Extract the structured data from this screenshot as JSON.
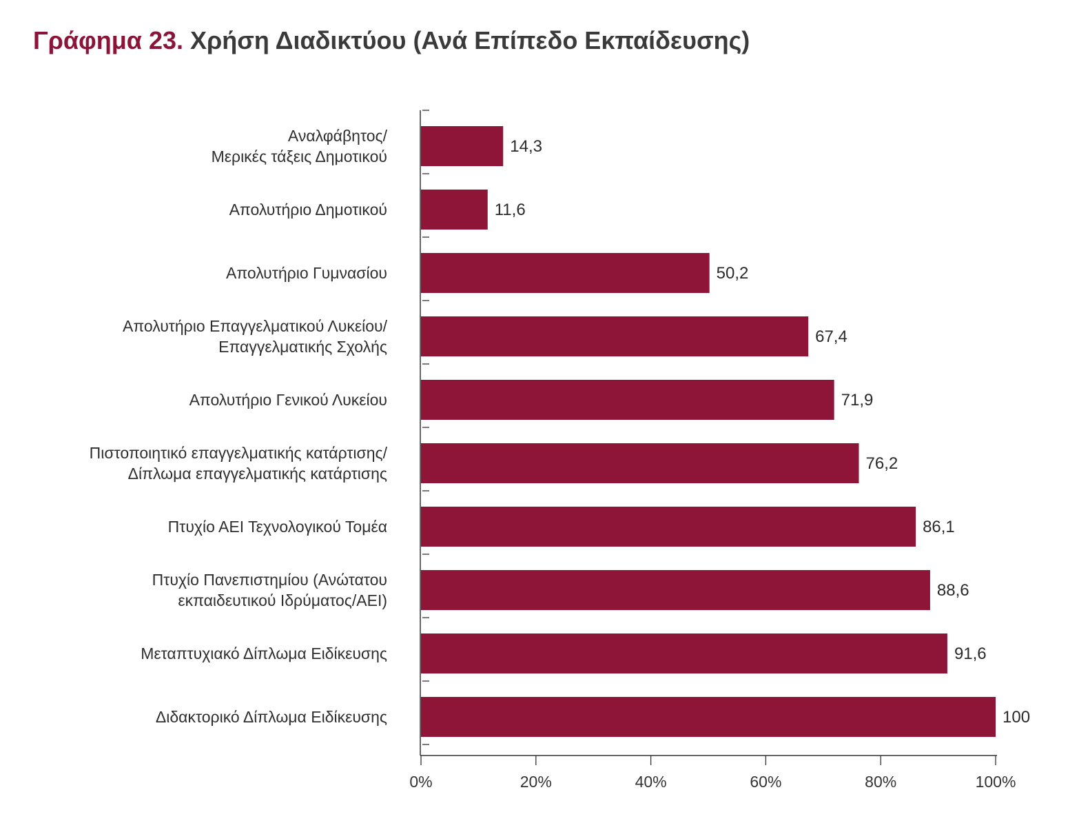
{
  "title": {
    "prefix": "Γράφημα 23.",
    "main": "Χρήση Διαδικτύου (Ανά Επίπεδο Εκπαίδευσης)"
  },
  "colors": {
    "bar": "#8e1538",
    "title_prefix": "#8b1538",
    "axis": "#333333"
  },
  "chart_data": {
    "type": "bar",
    "orientation": "horizontal",
    "title": "Χρήση Διαδικτύου (Ανά Επίπεδο Εκπαίδευσης)",
    "categories": [
      [
        "Αναλφάβητος/",
        "Μερικές τάξεις Δημοτικού"
      ],
      [
        "Απολυτήριο Δημοτικού"
      ],
      [
        "Απολυτήριο Γυμνασίου"
      ],
      [
        "Απολυτήριο Επαγγελματικού Λυκείου/",
        "Επαγγελματικής Σχολής"
      ],
      [
        "Απολυτήριο Γενικού Λυκείου"
      ],
      [
        "Πιστοποιητικό επαγγελματικής κατάρτισης/",
        "Δίπλωμα επαγγελματικής κατάρτισης"
      ],
      [
        "Πτυχίο ΑΕΙ Τεχνολογικού Τομέα"
      ],
      [
        "Πτυχίο Πανεπιστημίου (Ανώτατου",
        "εκπαιδευτικού Ιδρύματος/ΑΕΙ)"
      ],
      [
        "Μεταπτυχιακό Δίπλωμα Ειδίκευσης"
      ],
      [
        "Διδακτορικό Δίπλωμα Ειδίκευσης"
      ]
    ],
    "values": [
      14.3,
      11.6,
      50.2,
      67.4,
      71.9,
      76.2,
      86.1,
      88.6,
      91.6,
      100
    ],
    "value_labels": [
      "14,3",
      "11,6",
      "50,2",
      "67,4",
      "71,9",
      "76,2",
      "86,1",
      "88,6",
      "91,6",
      "100"
    ],
    "xlim": [
      0,
      100
    ],
    "xticks": [
      0,
      20,
      40,
      60,
      80,
      100
    ],
    "xtick_labels": [
      "0%",
      "20%",
      "40%",
      "60%",
      "80%",
      "100%"
    ],
    "grid": false,
    "legend": "none"
  }
}
